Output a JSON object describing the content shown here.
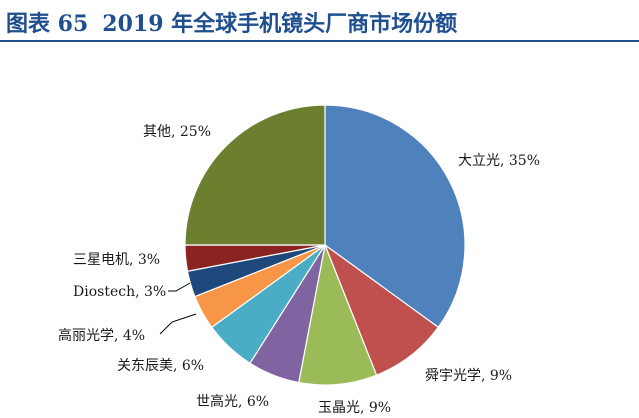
{
  "header": {
    "figure_no": "图表 65",
    "title": "2019 年全球手机镜头厂商市场份额"
  },
  "chart_data": {
    "type": "pie",
    "title": "2019 年全球手机镜头厂商市场份额",
    "slices": [
      {
        "name": "大立光",
        "value": 35,
        "label": "大立光, 35%",
        "color": "#4f81bd"
      },
      {
        "name": "舜宇光学",
        "value": 9,
        "label": "舜宇光学, 9%",
        "color": "#c0504d"
      },
      {
        "name": "玉晶光",
        "value": 9,
        "label": "玉晶光, 9%",
        "color": "#9bbb59"
      },
      {
        "name": "世高光",
        "value": 6,
        "label": "世高光, 6%",
        "color": "#8064a2"
      },
      {
        "name": "关东辰美",
        "value": 6,
        "label": "关东辰美, 6%",
        "color": "#4bacc6"
      },
      {
        "name": "高丽光学",
        "value": 4,
        "label": "高丽光学, 4%",
        "color": "#f79646"
      },
      {
        "name": "Diostech",
        "value": 3,
        "label": "Diostech, 3%",
        "color": "#1f497d"
      },
      {
        "name": "三星电机",
        "value": 3,
        "label": "三星电机, 3%",
        "color": "#8b2323"
      },
      {
        "name": "其他",
        "value": 25,
        "label": "其他, 25%",
        "color": "#6b7f2e"
      }
    ],
    "start_angle": "12 o'clock",
    "direction": "clockwise",
    "legend": "none"
  }
}
